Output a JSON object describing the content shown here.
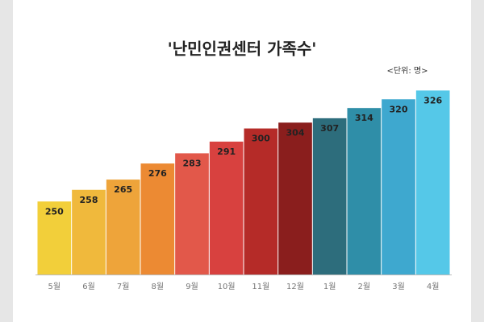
{
  "chart_data": {
    "type": "bar",
    "title": "'난민인권센터 가족수'",
    "subtitle": "<단위: 명>",
    "categories": [
      "5월",
      "6월",
      "7월",
      "8월",
      "9월",
      "10월",
      "11월",
      "12월",
      "1월",
      "2월",
      "3월",
      "4월"
    ],
    "values": [
      250,
      258,
      265,
      276,
      283,
      291,
      300,
      304,
      307,
      314,
      320,
      326
    ],
    "colors": [
      "#f2cf3a",
      "#f0b93c",
      "#eea43a",
      "#ec8a33",
      "#e2584a",
      "#d8413f",
      "#b52b28",
      "#8a1e1d",
      "#2d6d7c",
      "#2f8ea8",
      "#3ea8cf",
      "#55c8e8"
    ],
    "ylim": [
      200,
      340
    ]
  }
}
